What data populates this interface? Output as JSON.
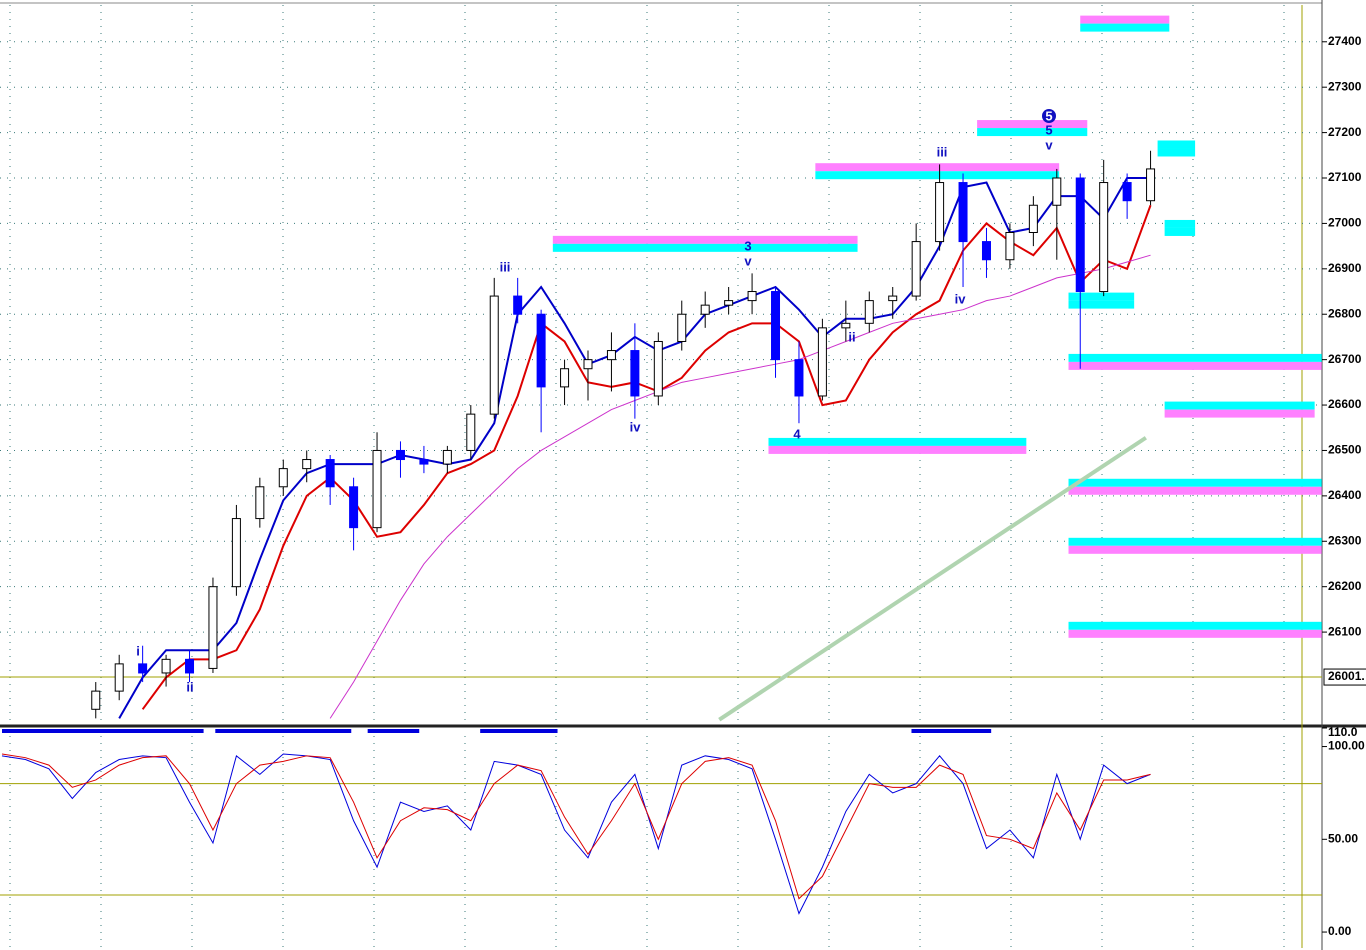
{
  "chart_data": [
    {
      "type": "candlestick",
      "ylim": [
        25902,
        27481
      ],
      "yticks": [
        26100,
        26200,
        26300,
        26400,
        26500,
        26600,
        26700,
        26800,
        26900,
        27000,
        27100,
        27200,
        27300,
        27400
      ],
      "grid": true,
      "up_color": "#ffffff",
      "down_color": "#0000ff",
      "candles": {
        "open": [
          null,
          null,
          null,
          null,
          25930,
          25970,
          26030,
          26010,
          26040,
          26020,
          26200,
          26350,
          26420,
          26460,
          26480,
          26420,
          26330,
          26500,
          26480,
          26470,
          26500,
          26580,
          26840,
          26800,
          26640,
          26680,
          26700,
          26720,
          26620,
          26740,
          26800,
          26820,
          26830,
          26850,
          26700,
          26620,
          26770,
          26780,
          26830,
          26840,
          26960,
          27090,
          26960,
          26920,
          26980,
          27040,
          27100,
          26850,
          27090,
          27050
        ],
        "high": [
          null,
          null,
          null,
          null,
          25990,
          26050,
          26070,
          26050,
          26060,
          26220,
          26380,
          26440,
          26480,
          26500,
          26490,
          26440,
          26540,
          26520,
          26510,
          26510,
          26600,
          26880,
          26880,
          26810,
          26700,
          26720,
          26760,
          26780,
          26760,
          26830,
          26850,
          26860,
          26890,
          26860,
          26740,
          26790,
          26830,
          26850,
          26860,
          27000,
          27130,
          27110,
          26990,
          27000,
          27060,
          27120,
          27110,
          27140,
          27110,
          27160
        ],
        "low": [
          null,
          null,
          null,
          null,
          25910,
          25950,
          25990,
          25980,
          25990,
          26010,
          26180,
          26330,
          26400,
          26430,
          26380,
          26280,
          26320,
          26440,
          26450,
          26450,
          26480,
          26570,
          26780,
          26540,
          26600,
          26610,
          26630,
          26570,
          26600,
          26720,
          26770,
          26800,
          26800,
          26660,
          26560,
          26610,
          26740,
          26760,
          26790,
          26830,
          26940,
          26860,
          26880,
          26900,
          26950,
          26920,
          26680,
          26840,
          27010,
          27040
        ],
        "close": [
          null,
          null,
          null,
          null,
          25970,
          26030,
          26010,
          26040,
          26010,
          26200,
          26350,
          26420,
          26460,
          26480,
          26420,
          26330,
          26500,
          26480,
          26470,
          26500,
          26580,
          26840,
          26800,
          26640,
          26680,
          26700,
          26720,
          26620,
          26740,
          26800,
          26820,
          26830,
          26850,
          26700,
          26620,
          26770,
          26780,
          26830,
          26840,
          26960,
          27090,
          26960,
          26920,
          26980,
          27040,
          27100,
          26850,
          27090,
          27050,
          27120
        ]
      },
      "series": [
        {
          "color": "#0000c8",
          "values": [
            null,
            null,
            null,
            null,
            null,
            25910,
            26000,
            26060,
            26060,
            26060,
            26120,
            26260,
            26390,
            26450,
            26470,
            26470,
            26470,
            26490,
            26480,
            26470,
            26480,
            26560,
            26800,
            26860,
            26780,
            26690,
            26710,
            26750,
            26720,
            26740,
            26800,
            26820,
            26840,
            26860,
            26810,
            26750,
            26790,
            26790,
            26800,
            26860,
            26950,
            27080,
            27090,
            26980,
            26990,
            27060,
            27060,
            27010,
            27100,
            27100
          ]
        },
        {
          "color": "#dd0000",
          "values": [
            null,
            null,
            null,
            null,
            null,
            null,
            25930,
            26000,
            26040,
            26040,
            26060,
            26150,
            26290,
            26400,
            26440,
            26390,
            26310,
            26320,
            26380,
            26450,
            26470,
            26500,
            26620,
            26780,
            26740,
            26650,
            26640,
            26650,
            26630,
            26660,
            26720,
            26760,
            26780,
            26780,
            26740,
            26600,
            26610,
            26700,
            26760,
            26800,
            26830,
            26940,
            27000,
            26960,
            26930,
            26990,
            26870,
            26920,
            26900,
            27040
          ]
        },
        {
          "color": "#cc33cc",
          "values": [
            null,
            null,
            null,
            null,
            null,
            null,
            null,
            null,
            null,
            null,
            null,
            null,
            null,
            null,
            25910,
            25990,
            26080,
            26170,
            26250,
            26310,
            26360,
            26410,
            26460,
            26500,
            26530,
            26560,
            26590,
            26610,
            26630,
            26650,
            26660,
            26670,
            26680,
            26690,
            26700,
            26720,
            26740,
            26760,
            26780,
            26790,
            26800,
            26810,
            26830,
            26840,
            26860,
            26880,
            26890,
            26900,
            26915,
            26930
          ]
        }
      ],
      "trendline": {
        "color": "#b0d4b0",
        "x": [
          30.6,
          48.8
        ],
        "y": [
          25907,
          26528
        ]
      },
      "reference_line": {
        "value": 26001,
        "label": "26001.",
        "color": "#a0a000"
      },
      "zones": [
        {
          "price": 27440,
          "start": 46.0,
          "end": 49.8,
          "colors": [
            "#ff80ff",
            "#00ffff"
          ]
        },
        {
          "price": 27210,
          "start": 41.6,
          "end": 46.3,
          "colors": [
            "#ff80ff",
            "#00ffff"
          ]
        },
        {
          "price": 27165,
          "start": 49.3,
          "end": 50.9,
          "colors": [
            "#00ffff",
            "#00ffff"
          ]
        },
        {
          "price": 27115,
          "start": 34.7,
          "end": 45.1,
          "colors": [
            "#ff80ff",
            "#00ffff"
          ]
        },
        {
          "price": 26955,
          "start": 23.5,
          "end": 36.5,
          "colors": [
            "#ff80ff",
            "#00ffff"
          ]
        },
        {
          "price": 26990,
          "start": 49.6,
          "end": 50.9,
          "colors": [
            "#00ffff",
            "#00ffff"
          ]
        },
        {
          "price": 26830,
          "start": 45.5,
          "end": 48.3,
          "colors": [
            "#00ffff",
            "#00ffff"
          ]
        },
        {
          "price": 26695,
          "start": 45.5,
          "end": 56.3,
          "colors": [
            "#00ffff",
            "#ff80ff"
          ]
        },
        {
          "price": 26590,
          "start": 49.6,
          "end": 56.0,
          "colors": [
            "#00ffff",
            "#ff80ff"
          ]
        },
        {
          "price": 26510,
          "start": 32.7,
          "end": 43.7,
          "colors": [
            "#00ffff",
            "#ff80ff"
          ]
        },
        {
          "price": 26420,
          "start": 45.5,
          "end": 56.3,
          "colors": [
            "#00ffff",
            "#ff80ff"
          ]
        },
        {
          "price": 26290,
          "start": 45.5,
          "end": 56.3,
          "colors": [
            "#00ffff",
            "#ff80ff"
          ]
        },
        {
          "price": 26105,
          "start": 45.5,
          "end": 56.3,
          "colors": [
            "#00ffff",
            "#ff80ff"
          ]
        }
      ],
      "signal_bars": [
        {
          "start": 0,
          "end": 8.6
        },
        {
          "start": 9.1,
          "end": 14.9
        },
        {
          "start": 15.6,
          "end": 17.8
        },
        {
          "start": 20.4,
          "end": 23.7
        },
        {
          "start": 38.8,
          "end": 42.2
        }
      ],
      "annotations": [
        "i",
        "ii",
        "iii",
        "iv",
        "3",
        "v",
        "4",
        "ii",
        "iii",
        "iv",
        "5",
        "v",
        "5"
      ]
    },
    {
      "type": "line",
      "ylim": [
        -8.6,
        110
      ],
      "yticks": [
        {
          "value": 0,
          "label": "0.00"
        },
        {
          "value": 50,
          "label": "50.00"
        },
        {
          "value": 100,
          "label": "100.00"
        },
        {
          "value": 110,
          "label": "110.0"
        }
      ],
      "reference_lines": [
        80,
        20
      ],
      "series": [
        {
          "color": "#0000dd",
          "values": [
            95,
            93,
            88,
            72,
            86,
            93,
            95,
            94,
            70,
            48,
            95,
            85,
            96,
            95,
            93,
            60,
            35,
            70,
            65,
            68,
            55,
            92,
            90,
            85,
            55,
            40,
            70,
            85,
            45,
            90,
            95,
            93,
            88,
            50,
            10,
            35,
            65,
            85,
            75,
            80,
            95,
            80,
            45,
            55,
            40,
            85,
            50,
            90,
            80,
            85
          ]
        },
        {
          "color": "#dd0000",
          "values": [
            96,
            94,
            90,
            78,
            82,
            90,
            94,
            95,
            80,
            55,
            80,
            90,
            92,
            95,
            94,
            70,
            40,
            60,
            67,
            66,
            60,
            80,
            90,
            87,
            62,
            42,
            60,
            80,
            50,
            80,
            92,
            94,
            90,
            60,
            18,
            30,
            55,
            80,
            78,
            78,
            90,
            85,
            52,
            50,
            45,
            75,
            55,
            82,
            82,
            85
          ]
        }
      ]
    }
  ]
}
